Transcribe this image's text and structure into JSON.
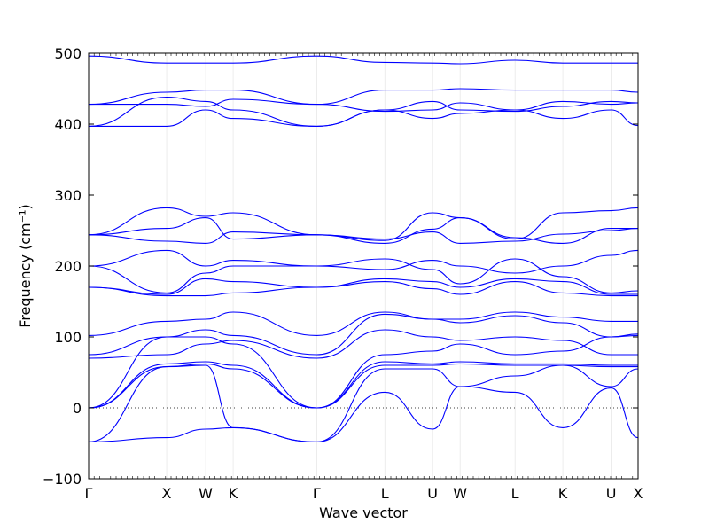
{
  "chart_data": {
    "type": "line",
    "xlabel": "Wave vector",
    "ylabel": "Frequency (cm⁻¹)",
    "ylim": [
      -100,
      500
    ],
    "yticks": [
      -100,
      0,
      100,
      200,
      300,
      400,
      500
    ],
    "xlim": [
      0,
      1
    ],
    "high_symmetry_points": [
      {
        "label": "Γ",
        "x": 0.0
      },
      {
        "label": "X",
        "x": 0.142
      },
      {
        "label": "W",
        "x": 0.213
      },
      {
        "label": "K",
        "x": 0.263
      },
      {
        "label": "Γ",
        "x": 0.415
      },
      {
        "label": "L",
        "x": 0.539
      },
      {
        "label": "U",
        "x": 0.626
      },
      {
        "label": "W",
        "x": 0.676
      },
      {
        "label": "L",
        "x": 0.776
      },
      {
        "label": "K",
        "x": 0.863
      },
      {
        "label": "U",
        "x": 0.951
      },
      {
        "label": "X",
        "x": 1.0
      }
    ],
    "zero_line": {
      "y": 0,
      "style": "dotted"
    },
    "line_color": "#0000ff",
    "series": [
      {
        "x": [
          0,
          0.142,
          0.213,
          0.263,
          0.415,
          0.539,
          0.626,
          0.676,
          0.776,
          0.863,
          0.951,
          1.0
        ],
        "y": [
          -48,
          -42,
          -30,
          -28,
          -48,
          22,
          -30,
          30,
          22,
          -28,
          28,
          -42
        ]
      },
      {
        "x": [
          0,
          0.142,
          0.213,
          0.263,
          0.415,
          0.539,
          0.626,
          0.676,
          0.776,
          0.863,
          0.951,
          1.0
        ],
        "y": [
          -48,
          58,
          60,
          -28,
          -48,
          55,
          55,
          30,
          45,
          60,
          30,
          55
        ]
      },
      {
        "x": [
          0,
          0.142,
          0.213,
          0.263,
          0.415,
          0.539,
          0.626,
          0.676,
          0.776,
          0.863,
          0.951,
          1.0
        ],
        "y": [
          0,
          58,
          62,
          55,
          0,
          60,
          60,
          62,
          60,
          60,
          58,
          58
        ]
      },
      {
        "x": [
          0,
          0.142,
          0.213,
          0.263,
          0.415,
          0.539,
          0.626,
          0.676,
          0.776,
          0.863,
          0.951,
          1.0
        ],
        "y": [
          0,
          62,
          65,
          60,
          0,
          65,
          62,
          65,
          62,
          62,
          60,
          60
        ]
      },
      {
        "x": [
          0,
          0.142,
          0.213,
          0.263,
          0.415,
          0.539,
          0.626,
          0.676,
          0.776,
          0.863,
          0.951,
          1.0
        ],
        "y": [
          0,
          100,
          100,
          90,
          0,
          75,
          80,
          90,
          75,
          80,
          100,
          102
        ]
      },
      {
        "x": [
          0,
          0.142,
          0.213,
          0.263,
          0.415,
          0.539,
          0.626,
          0.676,
          0.776,
          0.863,
          0.951,
          1.0
        ],
        "y": [
          70,
          75,
          90,
          95,
          70,
          110,
          100,
          95,
          100,
          95,
          75,
          75
        ]
      },
      {
        "x": [
          0,
          0.142,
          0.213,
          0.263,
          0.415,
          0.539,
          0.626,
          0.676,
          0.776,
          0.863,
          0.951,
          1.0
        ],
        "y": [
          75,
          100,
          110,
          102,
          75,
          132,
          125,
          120,
          130,
          120,
          100,
          104
        ]
      },
      {
        "x": [
          0,
          0.142,
          0.213,
          0.263,
          0.415,
          0.539,
          0.626,
          0.676,
          0.776,
          0.863,
          0.951,
          1.0
        ],
        "y": [
          102,
          122,
          125,
          135,
          102,
          135,
          125,
          125,
          135,
          128,
          122,
          122
        ]
      },
      {
        "x": [
          0,
          0.142,
          0.213,
          0.263,
          0.415,
          0.539,
          0.626,
          0.676,
          0.776,
          0.863,
          0.951,
          1.0
        ],
        "y": [
          170,
          158,
          158,
          162,
          170,
          178,
          168,
          160,
          178,
          162,
          158,
          158
        ]
      },
      {
        "x": [
          0,
          0.142,
          0.213,
          0.263,
          0.415,
          0.539,
          0.626,
          0.676,
          0.776,
          0.863,
          0.951,
          1.0
        ],
        "y": [
          170,
          160,
          182,
          178,
          170,
          182,
          178,
          170,
          182,
          178,
          160,
          160
        ]
      },
      {
        "x": [
          0,
          0.142,
          0.213,
          0.263,
          0.415,
          0.539,
          0.626,
          0.676,
          0.776,
          0.863,
          0.951,
          1.0
        ],
        "y": [
          200,
          162,
          190,
          200,
          200,
          210,
          195,
          175,
          210,
          185,
          162,
          165
        ]
      },
      {
        "x": [
          0,
          0.142,
          0.213,
          0.263,
          0.415,
          0.539,
          0.626,
          0.676,
          0.776,
          0.863,
          0.951,
          1.0
        ],
        "y": [
          200,
          222,
          200,
          208,
          200,
          195,
          208,
          200,
          190,
          200,
          215,
          222
        ]
      },
      {
        "x": [
          0,
          0.142,
          0.213,
          0.263,
          0.415,
          0.539,
          0.626,
          0.676,
          0.776,
          0.863,
          0.951,
          1.0
        ],
        "y": [
          244,
          235,
          232,
          248,
          244,
          238,
          248,
          232,
          235,
          245,
          250,
          253
        ]
      },
      {
        "x": [
          0,
          0.142,
          0.213,
          0.263,
          0.415,
          0.539,
          0.626,
          0.676,
          0.776,
          0.863,
          0.951,
          1.0
        ],
        "y": [
          244,
          253,
          268,
          238,
          244,
          232,
          252,
          268,
          240,
          232,
          253,
          253
        ]
      },
      {
        "x": [
          0,
          0.142,
          0.213,
          0.263,
          0.415,
          0.539,
          0.626,
          0.676,
          0.776,
          0.863,
          0.951,
          1.0
        ],
        "y": [
          244,
          282,
          270,
          275,
          244,
          236,
          275,
          268,
          238,
          275,
          278,
          282
        ]
      },
      {
        "x": [
          0,
          0.142,
          0.213,
          0.263,
          0.415,
          0.539,
          0.626,
          0.676,
          0.776,
          0.863,
          0.951,
          1.0
        ],
        "y": [
          397,
          397,
          420,
          408,
          397,
          420,
          408,
          415,
          420,
          408,
          420,
          398
        ]
      },
      {
        "x": [
          0,
          0.142,
          0.213,
          0.263,
          0.415,
          0.539,
          0.626,
          0.676,
          0.776,
          0.863,
          0.951,
          1.0
        ],
        "y": [
          397,
          438,
          432,
          420,
          397,
          420,
          432,
          420,
          418,
          425,
          432,
          430
        ]
      },
      {
        "x": [
          0,
          0.142,
          0.213,
          0.263,
          0.415,
          0.539,
          0.626,
          0.676,
          0.776,
          0.863,
          0.951,
          1.0
        ],
        "y": [
          428,
          428,
          425,
          435,
          428,
          418,
          420,
          430,
          420,
          432,
          428,
          430
        ]
      },
      {
        "x": [
          0,
          0.142,
          0.213,
          0.263,
          0.415,
          0.539,
          0.626,
          0.676,
          0.776,
          0.863,
          0.951,
          1.0
        ],
        "y": [
          428,
          445,
          448,
          448,
          428,
          448,
          448,
          450,
          448,
          448,
          448,
          445
        ]
      },
      {
        "x": [
          0,
          0.142,
          0.213,
          0.263,
          0.415,
          0.539,
          0.626,
          0.676,
          0.776,
          0.863,
          0.951,
          1.0
        ],
        "y": [
          496,
          486,
          486,
          486,
          496,
          487,
          486,
          485,
          490,
          486,
          486,
          486
        ]
      }
    ]
  }
}
